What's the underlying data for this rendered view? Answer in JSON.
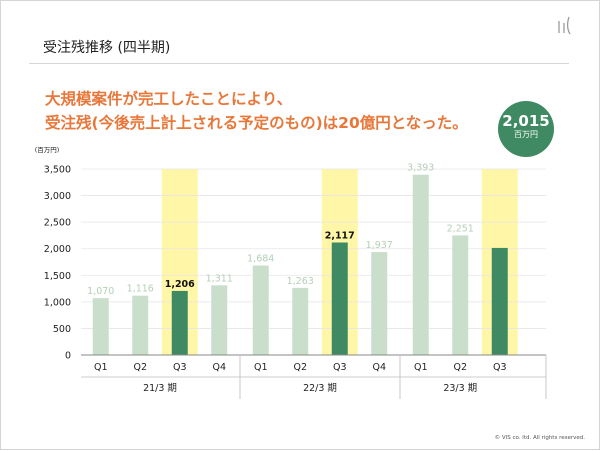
{
  "slide": {
    "title": "受注残推移 (四半期)",
    "headline_line1": "大規模案件が完工したことにより、",
    "headline_line2": "受注残(今後売上計上される予定のもの)は20億円となった。",
    "callout_value": "2,015",
    "callout_unit": "百万円",
    "copyright": "© VIS co. ltd. All rights reserved."
  },
  "colors": {
    "headline": "#e8773a",
    "bar_light": "#c9dfcc",
    "bar_dark": "#3f8a62",
    "highlight": "#fff6a8",
    "callout_bg": "#3f8a62"
  },
  "chart_data": {
    "type": "bar",
    "ylabel": "(百万円)",
    "ylim": [
      0,
      3500
    ],
    "yticks": [
      0,
      500,
      1000,
      1500,
      2000,
      2500,
      3000,
      3500
    ],
    "ytick_labels": [
      "0",
      "500",
      "1,000",
      "1,500",
      "2,000",
      "2,500",
      "3,000",
      "3,500"
    ],
    "grid": true,
    "groups": [
      {
        "label": "21/3 期",
        "bars": [
          {
            "quarter": "Q1",
            "value": 1070,
            "label": "1,070",
            "highlight": false
          },
          {
            "quarter": "Q2",
            "value": 1116,
            "label": "1,116",
            "highlight": false
          },
          {
            "quarter": "Q3",
            "value": 1206,
            "label": "1,206",
            "highlight": true
          },
          {
            "quarter": "Q4",
            "value": 1311,
            "label": "1,311",
            "highlight": false
          }
        ]
      },
      {
        "label": "22/3 期",
        "bars": [
          {
            "quarter": "Q1",
            "value": 1684,
            "label": "1,684",
            "highlight": false
          },
          {
            "quarter": "Q2",
            "value": 1263,
            "label": "1,263",
            "highlight": false
          },
          {
            "quarter": "Q3",
            "value": 2117,
            "label": "2,117",
            "highlight": true
          },
          {
            "quarter": "Q4",
            "value": 1937,
            "label": "1,937",
            "highlight": false
          }
        ]
      },
      {
        "label": "23/3 期",
        "bars": [
          {
            "quarter": "Q1",
            "value": 3393,
            "label": "3,393",
            "highlight": false
          },
          {
            "quarter": "Q2",
            "value": 2251,
            "label": "2,251",
            "highlight": false
          },
          {
            "quarter": "Q3",
            "value": 2015,
            "label": "",
            "highlight": true
          }
        ]
      }
    ]
  }
}
